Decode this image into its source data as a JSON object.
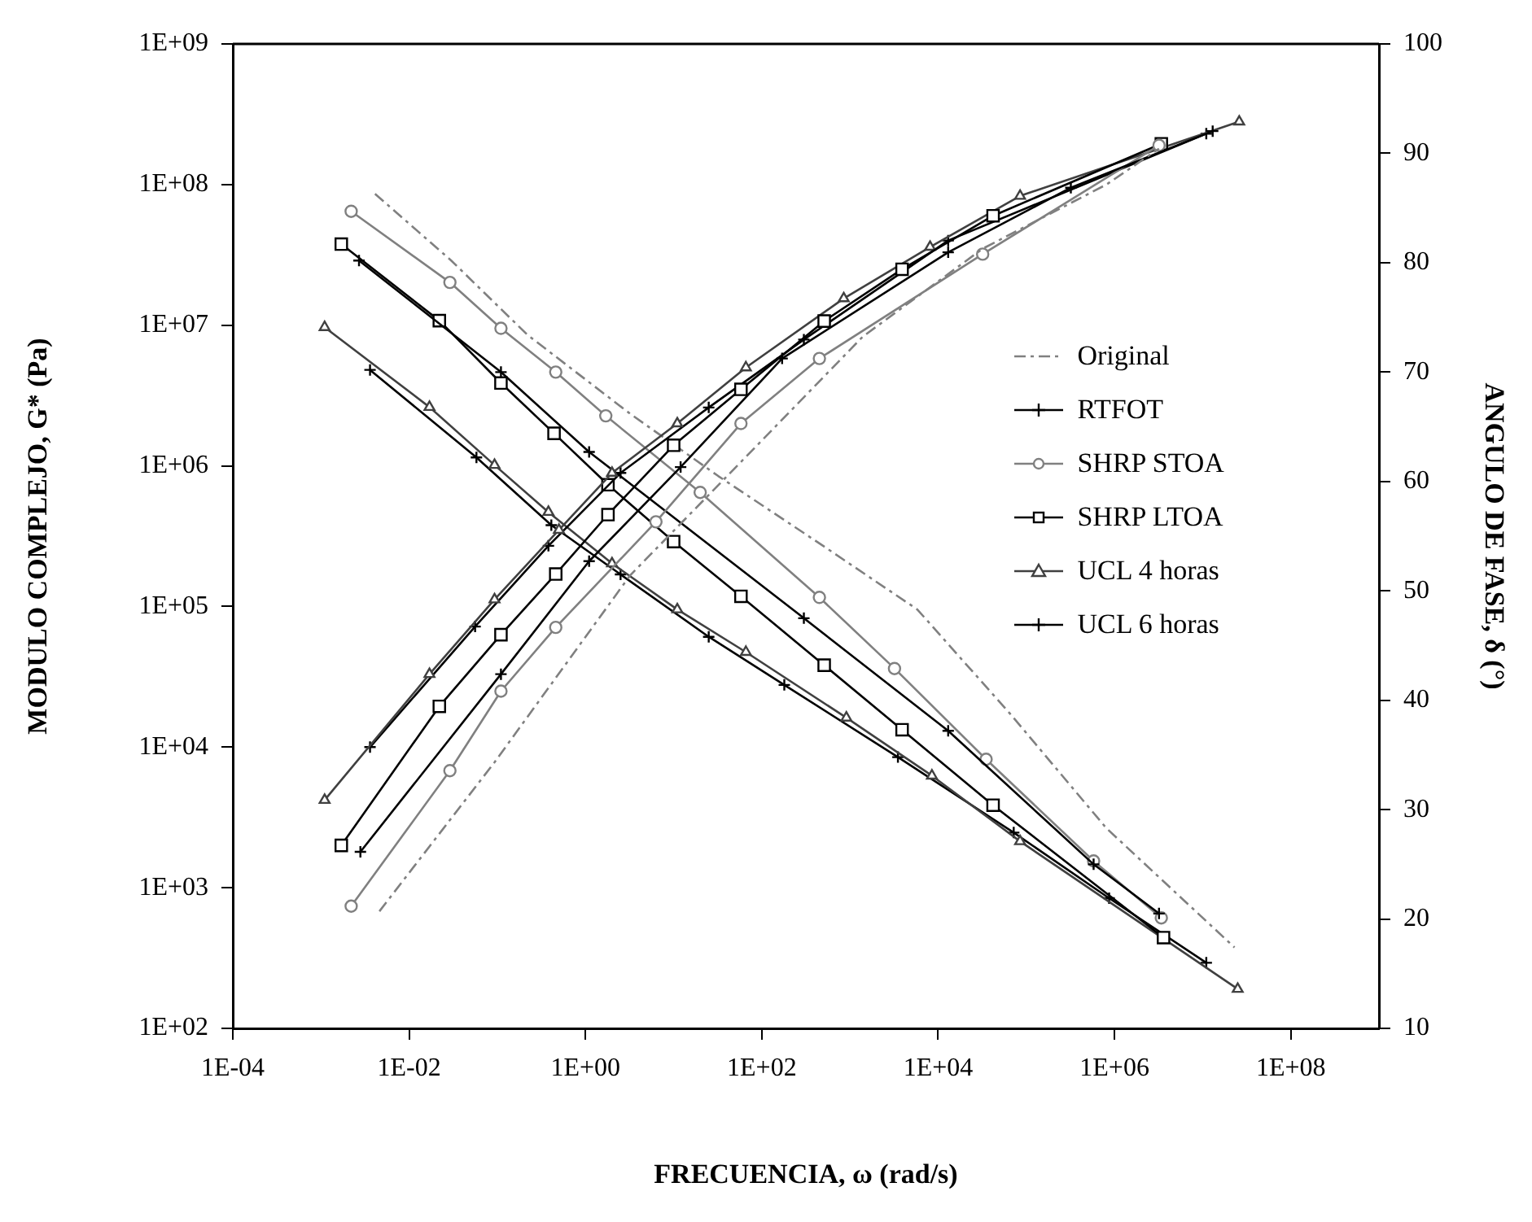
{
  "chart_data": {
    "type": "line",
    "xlabel": "FRECUENCIA, ω (rad/s)",
    "ylabel": "MODULO COMPLEJO, G* (Pa)",
    "y2label": "ANGULO DE FASE, δ (°)",
    "log": "xy",
    "xlim": [
      0.0001,
      1000000000
    ],
    "xticks": [
      {
        "value": 0.0001,
        "label": "1E-04"
      },
      {
        "value": 0.01,
        "label": "1E-02"
      },
      {
        "value": 1,
        "label": "1E+00"
      },
      {
        "value": 100,
        "label": "1E+02"
      },
      {
        "value": 10000,
        "label": "1E+04"
      },
      {
        "value": 1000000,
        "label": "1E+06"
      },
      {
        "value": 100000000,
        "label": "1E+08"
      }
    ],
    "ylim": [
      100,
      1000000000
    ],
    "yticks": [
      {
        "value": 100,
        "label": "1E+02"
      },
      {
        "value": 1000,
        "label": "1E+03"
      },
      {
        "value": 10000,
        "label": "1E+04"
      },
      {
        "value": 100000,
        "label": "1E+05"
      },
      {
        "value": 1000000,
        "label": "1E+06"
      },
      {
        "value": 10000000,
        "label": "1E+07"
      },
      {
        "value": 100000000,
        "label": "1E+08"
      },
      {
        "value": 1000000000,
        "label": "1E+09"
      }
    ],
    "y2lim": [
      10,
      100
    ],
    "y2ticks": [
      10,
      20,
      30,
      40,
      50,
      60,
      70,
      80,
      90,
      100
    ],
    "legend": "right",
    "series": [
      {
        "name": "Original",
        "color": "#808080",
        "marker": "none",
        "line_style": "dashed",
        "x": [
          0.0046,
          0.093,
          3.2,
          79,
          1400,
          32000,
          810000,
          3200000
        ],
        "values": [
          680,
          7800,
          166000,
          1300000,
          8300000,
          35000000,
          100000000,
          180000000
        ]
      },
      {
        "name": "RTFOT",
        "color": "#000000",
        "marker": "cross",
        "line_style": "solid",
        "x": [
          0.0028,
          0.11,
          1.1,
          12,
          170,
          13000,
          320000,
          13000000
        ],
        "values": [
          1800,
          33000,
          210000,
          980000,
          5800000,
          33000000,
          95000000,
          240000000
        ]
      },
      {
        "name": "SHRP STOA",
        "color": "#808080",
        "marker": "circle",
        "line_style": "solid",
        "x": [
          0.0022,
          0.029,
          0.11,
          0.46,
          6.3,
          58,
          450,
          32000,
          3200000
        ],
        "values": [
          740,
          6800,
          25000,
          71000,
          400000,
          2000000,
          5800000,
          32000000,
          190000000
        ]
      },
      {
        "name": "SHRP LTOA",
        "color": "#000000",
        "marker": "square",
        "line_style": "solid",
        "x": [
          0.0017,
          0.022,
          0.11,
          0.46,
          1.8,
          10,
          58,
          510,
          3900,
          42000,
          3400000
        ],
        "values": [
          2000,
          19500,
          63000,
          170000,
          450000,
          1400000,
          3500000,
          10700000,
          25000000,
          60000000,
          195000000
        ]
      },
      {
        "name": "UCL 4 horas",
        "color": "#404040",
        "marker": "triangle",
        "line_style": "solid",
        "x": [
          0.0011,
          0.017,
          0.093,
          0.5,
          2,
          11,
          66,
          850,
          8100,
          85000,
          26000000
        ],
        "values": [
          4200,
          33000,
          112000,
          350000,
          890000,
          2000000,
          5000000,
          15500000,
          36000000,
          83000000,
          280000000
        ]
      },
      {
        "name": "UCL 6 horas",
        "color": "#000000",
        "marker": "cross",
        "line_style": "solid",
        "x": [
          0.0036,
          0.056,
          0.38,
          2.5,
          25,
          300,
          13000,
          11000000
        ],
        "values": [
          10000,
          72000,
          270000,
          890000,
          2600000,
          7900000,
          40000000,
          230000000
        ]
      },
      {
        "color": "#808080",
        "marker": "none",
        "line_style": "dashed",
        "axis": "y2",
        "x": [
          0.0041,
          0.03,
          0.22,
          3.2,
          32,
          520,
          5800,
          65000,
          810000,
          23000000
        ],
        "values": [
          86.3,
          80.2,
          73.4,
          66.2,
          60.5,
          54.0,
          48.3,
          38.8,
          28.3,
          17.4
        ]
      },
      {
        "color": "#000000",
        "marker": "cross",
        "line_style": "solid",
        "axis": "y2",
        "x": [
          0.0027,
          0.11,
          1.1,
          300,
          13000,
          580000,
          3200000
        ],
        "values": [
          80.2,
          70.0,
          62.7,
          47.5,
          37.2,
          25.0,
          20.5
        ]
      },
      {
        "color": "#808080",
        "marker": "circle",
        "line_style": "solid",
        "axis": "y2",
        "x": [
          0.0022,
          0.029,
          0.11,
          0.46,
          1.7,
          20,
          450,
          3200,
          35000,
          580000,
          3400000
        ],
        "values": [
          84.7,
          78.2,
          74.0,
          70.0,
          66.0,
          59.0,
          49.4,
          42.9,
          34.6,
          25.3,
          20.1
        ]
      },
      {
        "color": "#000000",
        "marker": "square",
        "line_style": "solid",
        "axis": "y2",
        "x": [
          0.0017,
          0.022,
          0.11,
          0.44,
          1.8,
          10,
          58,
          510,
          3900,
          42000,
          3600000
        ],
        "values": [
          81.7,
          74.7,
          69.0,
          64.4,
          59.7,
          54.5,
          49.5,
          43.2,
          37.3,
          30.4,
          18.3
        ]
      },
      {
        "color": "#404040",
        "marker": "triangle",
        "line_style": "solid",
        "axis": "y2",
        "x": [
          0.0011,
          0.017,
          0.093,
          0.38,
          2,
          11,
          66,
          910,
          8500,
          85000,
          25000000
        ],
        "values": [
          74.1,
          66.8,
          61.5,
          57.2,
          52.5,
          48.3,
          44.4,
          38.4,
          33.1,
          27.1,
          13.6
        ]
      },
      {
        "color": "#000000",
        "marker": "cross",
        "line_style": "solid",
        "axis": "y2",
        "x": [
          0.0036,
          0.058,
          0.41,
          2.5,
          25,
          180,
          3500,
          72000,
          870000,
          11000000
        ],
        "values": [
          70.2,
          62.2,
          56.0,
          51.5,
          45.8,
          41.4,
          34.8,
          27.9,
          21.9,
          16.0
        ]
      }
    ]
  }
}
